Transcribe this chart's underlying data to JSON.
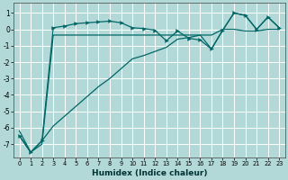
{
  "xlabel": "Humidex (Indice chaleur)",
  "background_color": "#b2d8d8",
  "grid_color": "#ffffff",
  "line_color": "#006666",
  "xlim": [
    -0.5,
    23.5
  ],
  "ylim": [
    -7.8,
    1.6
  ],
  "yticks": [
    -7,
    -6,
    -5,
    -4,
    -3,
    -2,
    -1,
    0,
    1
  ],
  "xtick_labels": [
    "0",
    "1",
    "2",
    "3",
    "4",
    "5",
    "6",
    "7",
    "8",
    "9",
    "10",
    "11",
    "12",
    "13",
    "14",
    "15",
    "16",
    "17",
    "18",
    "19",
    "20",
    "21",
    "22",
    "23"
  ],
  "series_flat_x": [
    0,
    1,
    2,
    3,
    4,
    5,
    6,
    7,
    8,
    9,
    10,
    11,
    12,
    13,
    14,
    15,
    16,
    17,
    18,
    19,
    20,
    21,
    22,
    23
  ],
  "series_flat_y": [
    -6.5,
    -7.5,
    -7.0,
    -0.35,
    -0.35,
    -0.35,
    -0.35,
    -0.35,
    -0.35,
    -0.35,
    -0.35,
    -0.35,
    -0.35,
    -0.35,
    -0.35,
    -0.35,
    -0.35,
    -0.35,
    -0.0,
    -0.0,
    -0.1,
    -0.1,
    0.0,
    0.0
  ],
  "series_top_x": [
    0,
    1,
    2,
    3,
    4,
    5,
    6,
    7,
    8,
    9,
    10,
    11,
    12,
    13,
    14,
    15,
    16,
    17,
    18,
    19,
    20,
    21,
    22,
    23
  ],
  "series_top_y": [
    -6.5,
    -7.5,
    -6.8,
    0.1,
    0.2,
    0.35,
    0.4,
    0.45,
    0.5,
    0.4,
    0.1,
    0.05,
    -0.05,
    -0.7,
    -0.1,
    -0.55,
    -0.65,
    -1.2,
    -0.05,
    1.0,
    0.85,
    0.0,
    0.75,
    0.1
  ],
  "series_diag_x": [
    0,
    1,
    2,
    3,
    4,
    5,
    6,
    7,
    8,
    9,
    10,
    11,
    12,
    13,
    14,
    15,
    16,
    17,
    18,
    19,
    20,
    21,
    22,
    23
  ],
  "series_diag_y": [
    -6.2,
    -7.5,
    -6.8,
    -5.9,
    -5.3,
    -4.7,
    -4.1,
    -3.5,
    -3.0,
    -2.4,
    -1.8,
    -1.6,
    -1.35,
    -1.1,
    -0.6,
    -0.5,
    -0.35,
    -1.2,
    -0.05,
    1.0,
    0.85,
    0.0,
    0.75,
    0.1
  ]
}
